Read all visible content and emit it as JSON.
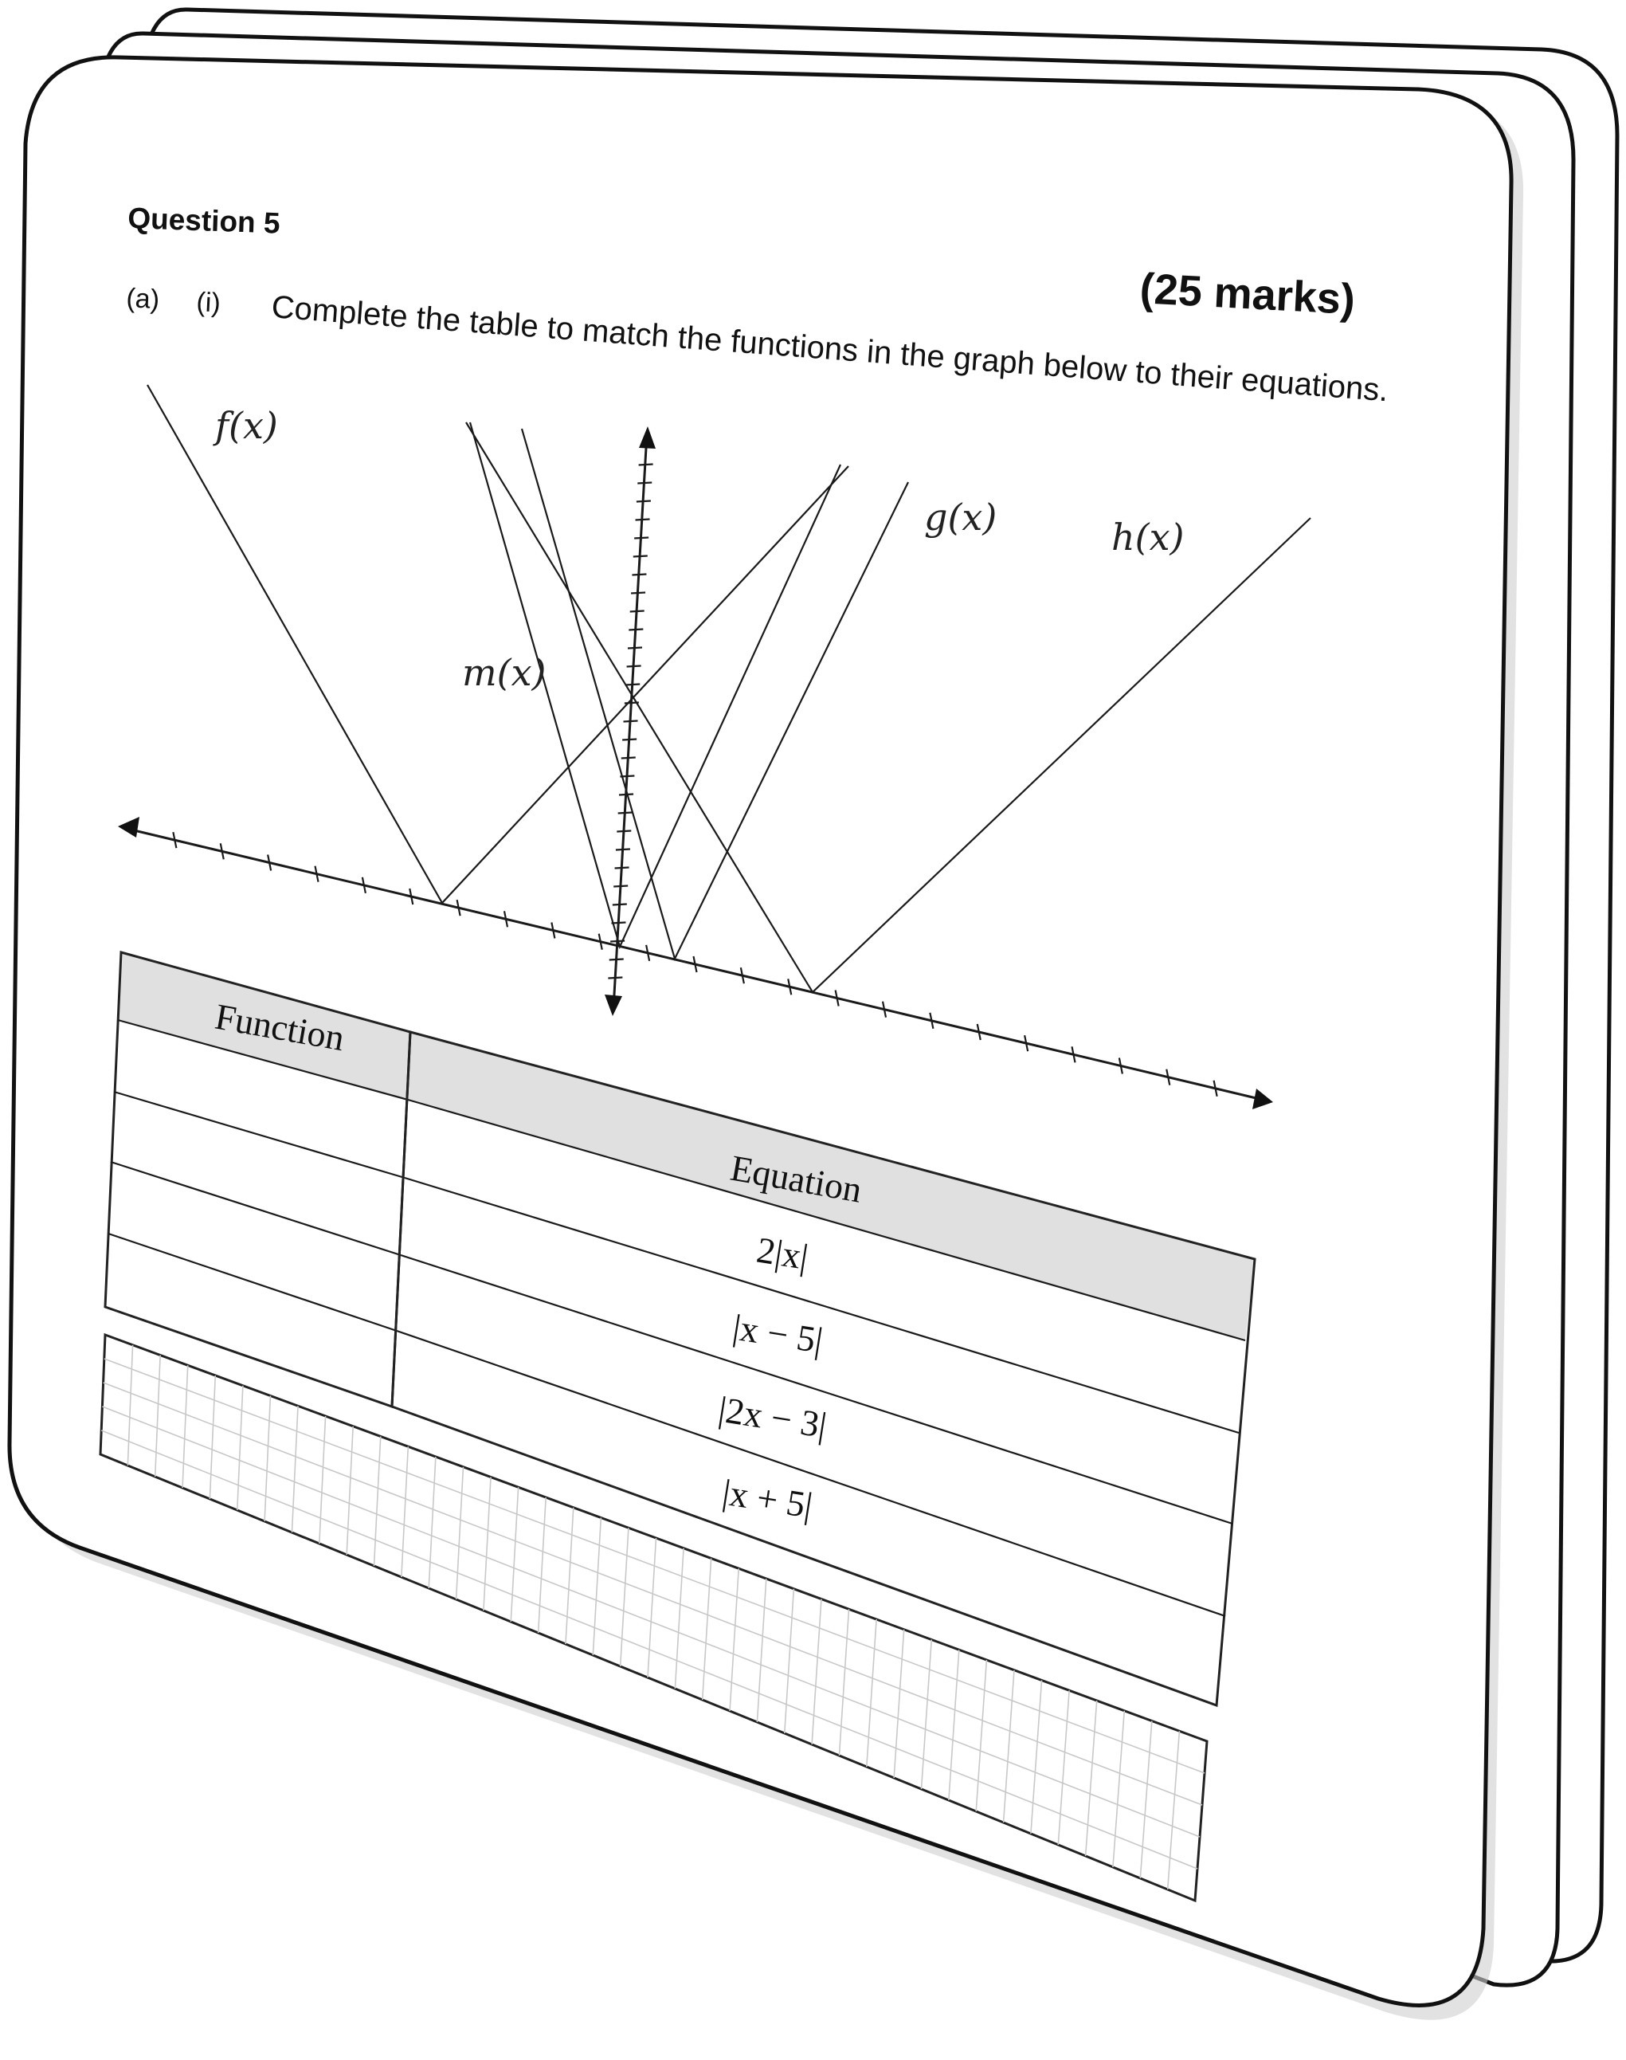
{
  "question": {
    "title": "Question 5",
    "marks": "(25 marks)",
    "part_letter": "(a)",
    "part_roman": "(i)",
    "instruction": "Complete the table to match the functions in the graph below to their equations."
  },
  "graph": {
    "labels": {
      "f": "f(x)",
      "g": "g(x)",
      "h": "h(x)",
      "m": "m(x)"
    }
  },
  "table": {
    "header_function": "Function",
    "header_equation": "Equation",
    "equations": [
      "2|x|",
      "|x − 5|",
      "|2x − 3|",
      "|x + 5|"
    ],
    "functions": [
      "",
      "",
      "",
      ""
    ]
  }
}
